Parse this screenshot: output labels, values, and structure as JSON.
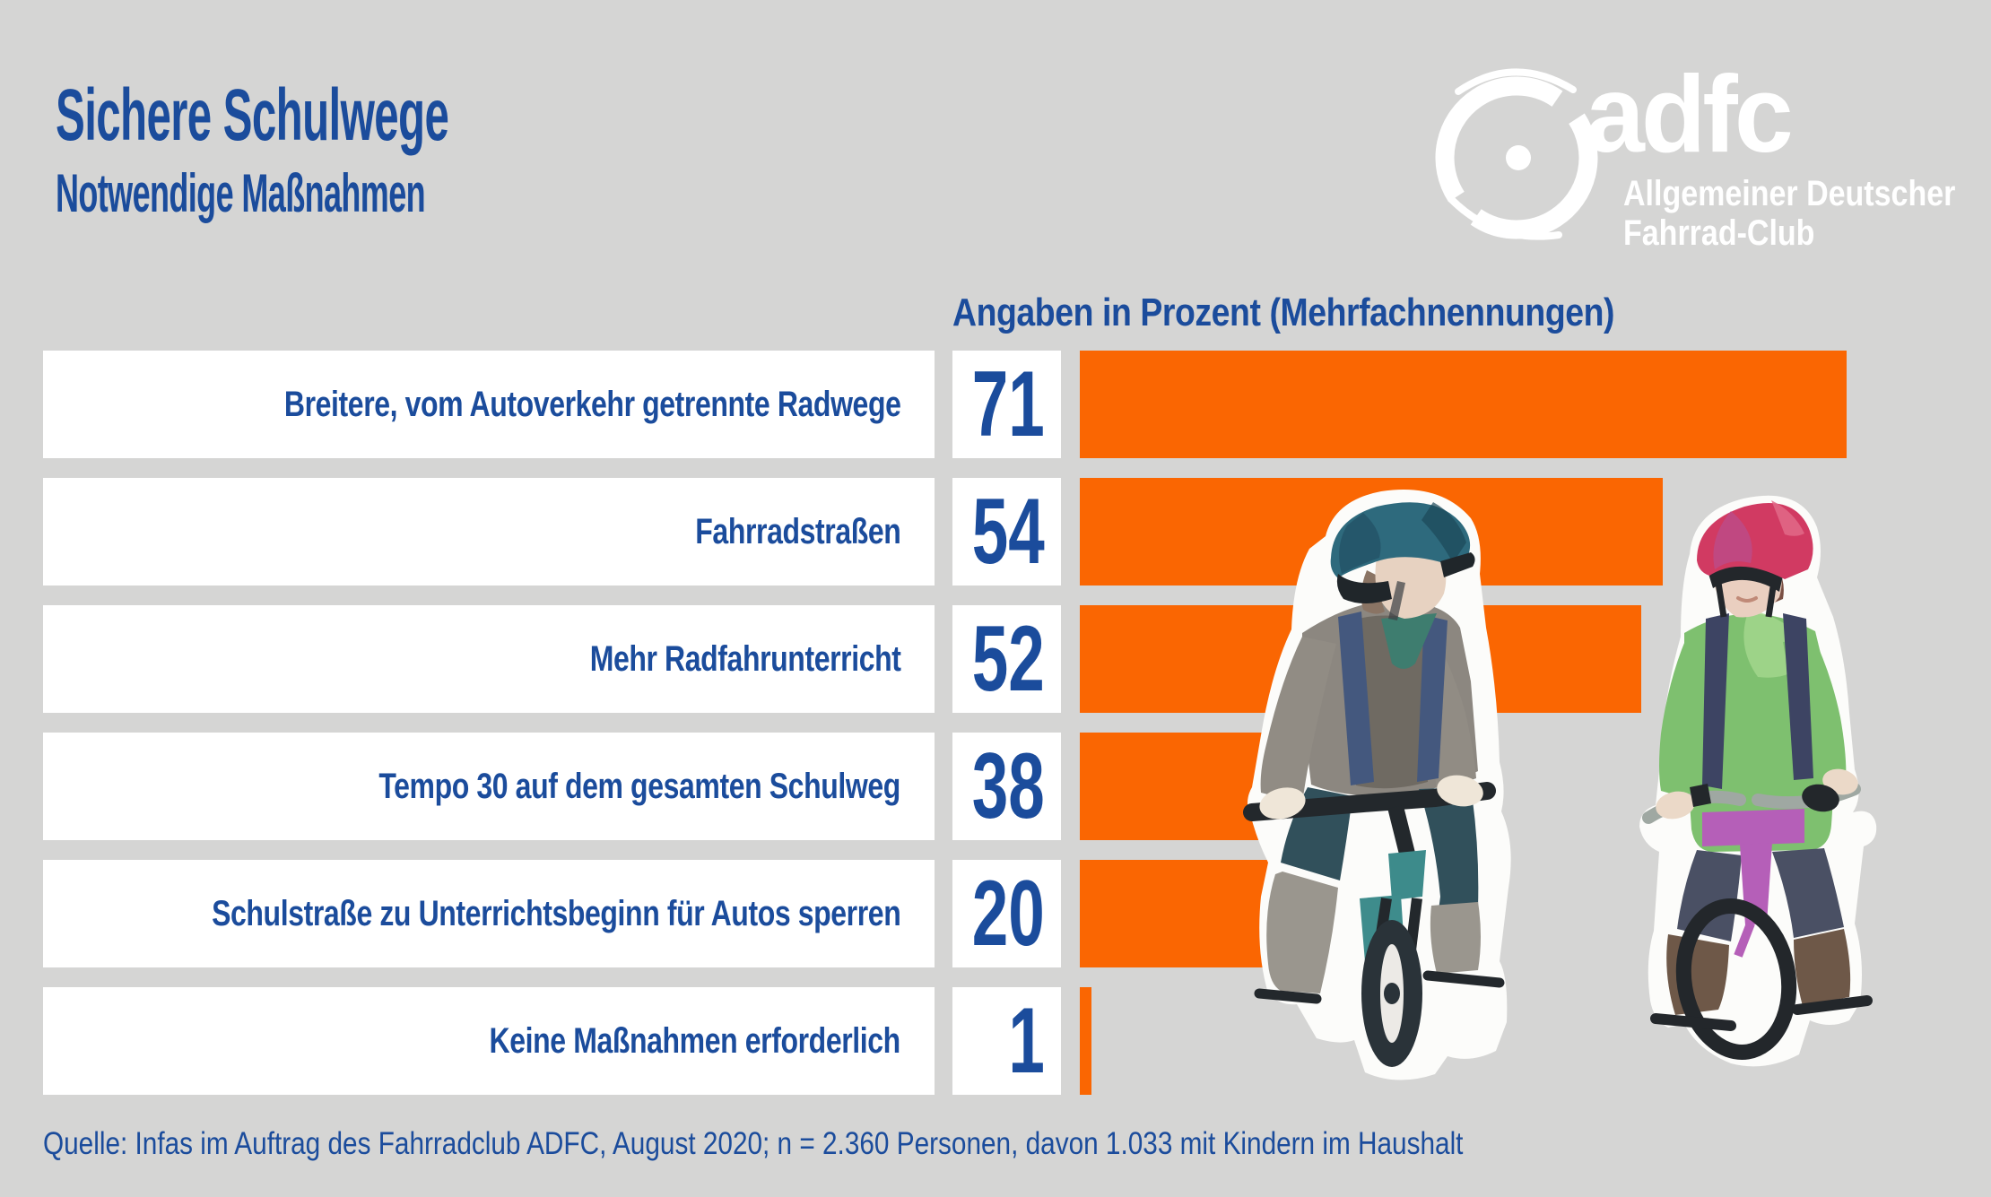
{
  "header": {
    "title": "Sichere Schulwege",
    "subtitle": "Notwendige Maßnahmen"
  },
  "logo": {
    "brand": "adfc",
    "line1": "Allgemeiner Deutscher",
    "line2": "Fahrrad-Club",
    "icon": "bike-wheel-icon"
  },
  "chart_data": {
    "type": "bar",
    "orientation": "horizontal",
    "title": "Sichere Schulwege – Notwendige Maßnahmen",
    "unit_label": "Angaben in Prozent (Mehrfachnennungen)",
    "categories": [
      "Breitere, vom Autoverkehr getrennte Radwege",
      "Fahrradstraßen",
      "Mehr Radfahrunterricht",
      "Tempo 30 auf dem gesamten Schulweg",
      "Schulstraße zu Unterrichtsbeginn für Autos sperren",
      "Keine Maßnahmen erforderlich"
    ],
    "values": [
      71,
      54,
      52,
      38,
      20,
      1
    ],
    "xlabel": "",
    "ylabel": "",
    "xlim": [
      0,
      71
    ],
    "gridlines": false,
    "legend": false,
    "bar_color": "#fa6602",
    "value_label_position": "left-box"
  },
  "illustration": {
    "name": "children-cycling",
    "left_child": "child cyclist with teal helmet, grey sweater and backpack",
    "right_child": "child cyclist with red helmet, green sweater and purple bike"
  },
  "source": "Quelle: Infas im Auftrag des Fahrradclub ADFC, August 2020; n = 2.360 Personen, davon 1.033 mit Kindern im Haushalt",
  "colors": {
    "background": "#d5d5d4",
    "text_blue": "#1b4c9c",
    "bar_orange": "#fa6602",
    "box_white": "#ffffff",
    "logo_white": "#ffffff"
  }
}
